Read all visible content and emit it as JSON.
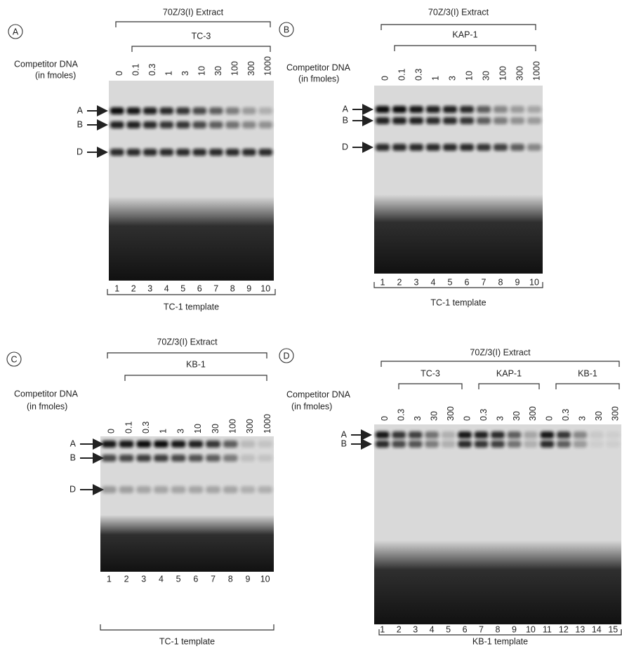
{
  "panels": [
    {
      "label": "A",
      "extract": "70Z/3(I) Extract",
      "competitor_label": [
        "Competitor DNA",
        "(in fmoles)"
      ],
      "competitors": [
        "TC-3"
      ],
      "amounts": [
        "0",
        "0.1",
        "0.3",
        "1",
        "3",
        "10",
        "30",
        "100",
        "300",
        "1000"
      ],
      "lanes": [
        "1",
        "2",
        "3",
        "4",
        "5",
        "6",
        "7",
        "8",
        "9",
        "10"
      ],
      "bands": [
        "A",
        "B",
        "D"
      ],
      "template": "TC-1 template"
    },
    {
      "label": "B",
      "extract": "70Z/3(I) Extract",
      "competitor_label": [
        "Competitor DNA",
        "(in fmoles)"
      ],
      "competitors": [
        "KAP-1"
      ],
      "amounts": [
        "0",
        "0.1",
        "0.3",
        "1",
        "3",
        "10",
        "30",
        "100",
        "300",
        "1000"
      ],
      "lanes": [
        "1",
        "2",
        "3",
        "4",
        "5",
        "6",
        "7",
        "8",
        "9",
        "10"
      ],
      "bands": [
        "A",
        "B",
        "D"
      ],
      "template": "TC-1 template"
    },
    {
      "label": "C",
      "extract": "70Z/3(I) Extract",
      "competitor_label": [
        "Competitor DNA",
        "(in fmoles)"
      ],
      "competitors": [
        "KB-1"
      ],
      "amounts": [
        "0",
        "0.1",
        "0.3",
        "1",
        "3",
        "10",
        "30",
        "100",
        "300",
        "1000"
      ],
      "lanes": [
        "1",
        "2",
        "3",
        "4",
        "5",
        "6",
        "7",
        "8",
        "9",
        "10"
      ],
      "bands": [
        "A",
        "B",
        "D"
      ],
      "template": "TC-1 template"
    },
    {
      "label": "D",
      "extract": "70Z/3(I) Extract",
      "competitor_label": [
        "Competitor DNA",
        "(in fmoles)"
      ],
      "competitors": [
        "TC-3",
        "KAP-1",
        "KB-1"
      ],
      "amounts": [
        "0",
        "0.3",
        "3",
        "30",
        "300",
        "0",
        "0.3",
        "3",
        "30",
        "300",
        "0",
        "0.3",
        "3",
        "30",
        "300"
      ],
      "lanes": [
        "1",
        "2",
        "3",
        "4",
        "5",
        "6",
        "7",
        "8",
        "9",
        "10",
        "11",
        "12",
        "13",
        "14",
        "15"
      ],
      "bands": [
        "A",
        "B"
      ],
      "template": "KB-1 template"
    }
  ]
}
